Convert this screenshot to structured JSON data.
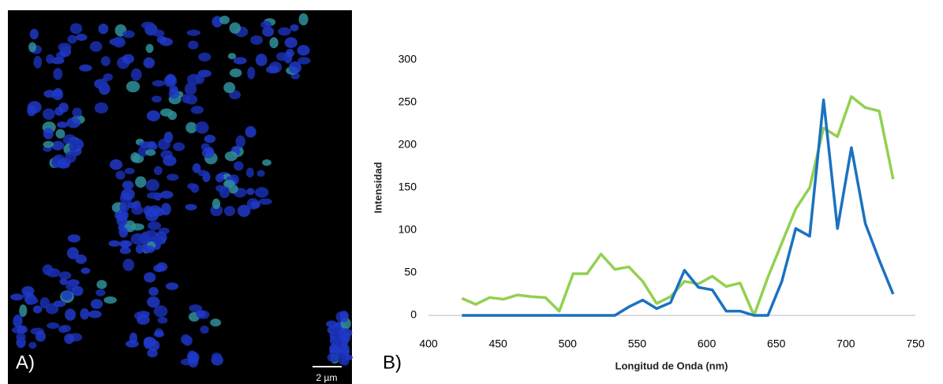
{
  "panels": {
    "a_label": "A)",
    "scale_bar": "2 µm",
    "b_label": "B)"
  },
  "chart_data": {
    "type": "line",
    "x_label": "Longitud de Onda (nm)",
    "y_label": "Intensidad",
    "x": [
      424,
      434,
      444,
      454,
      464,
      474,
      484,
      494,
      504,
      514,
      524,
      534,
      544,
      554,
      564,
      574,
      584,
      594,
      604,
      614,
      624,
      634,
      644,
      654,
      664,
      674,
      684,
      694,
      704,
      714,
      724,
      734
    ],
    "series": [
      {
        "name": "green",
        "color": "#92d050",
        "values": [
          20,
          13,
          21,
          19,
          24,
          22,
          21,
          5,
          49,
          49,
          72,
          54,
          57,
          40,
          14,
          22,
          40,
          37,
          46,
          34,
          38,
          0,
          45,
          85,
          125,
          150,
          220,
          210,
          257,
          244,
          240,
          160
        ]
      },
      {
        "name": "blue",
        "color": "#1a72c0",
        "values": [
          0,
          0,
          0,
          0,
          0,
          0,
          0,
          0,
          0,
          0,
          0,
          0,
          10,
          18,
          8,
          15,
          53,
          33,
          30,
          5,
          5,
          0,
          0,
          40,
          102,
          93,
          253,
          102,
          197,
          108,
          65,
          25
        ]
      }
    ],
    "xlim": [
      400,
      750
    ],
    "xticks": [
      400,
      450,
      500,
      550,
      600,
      650,
      700,
      750
    ],
    "ylim": [
      0,
      300
    ],
    "yticks": [
      0,
      50,
      100,
      150,
      200,
      250,
      300
    ]
  }
}
